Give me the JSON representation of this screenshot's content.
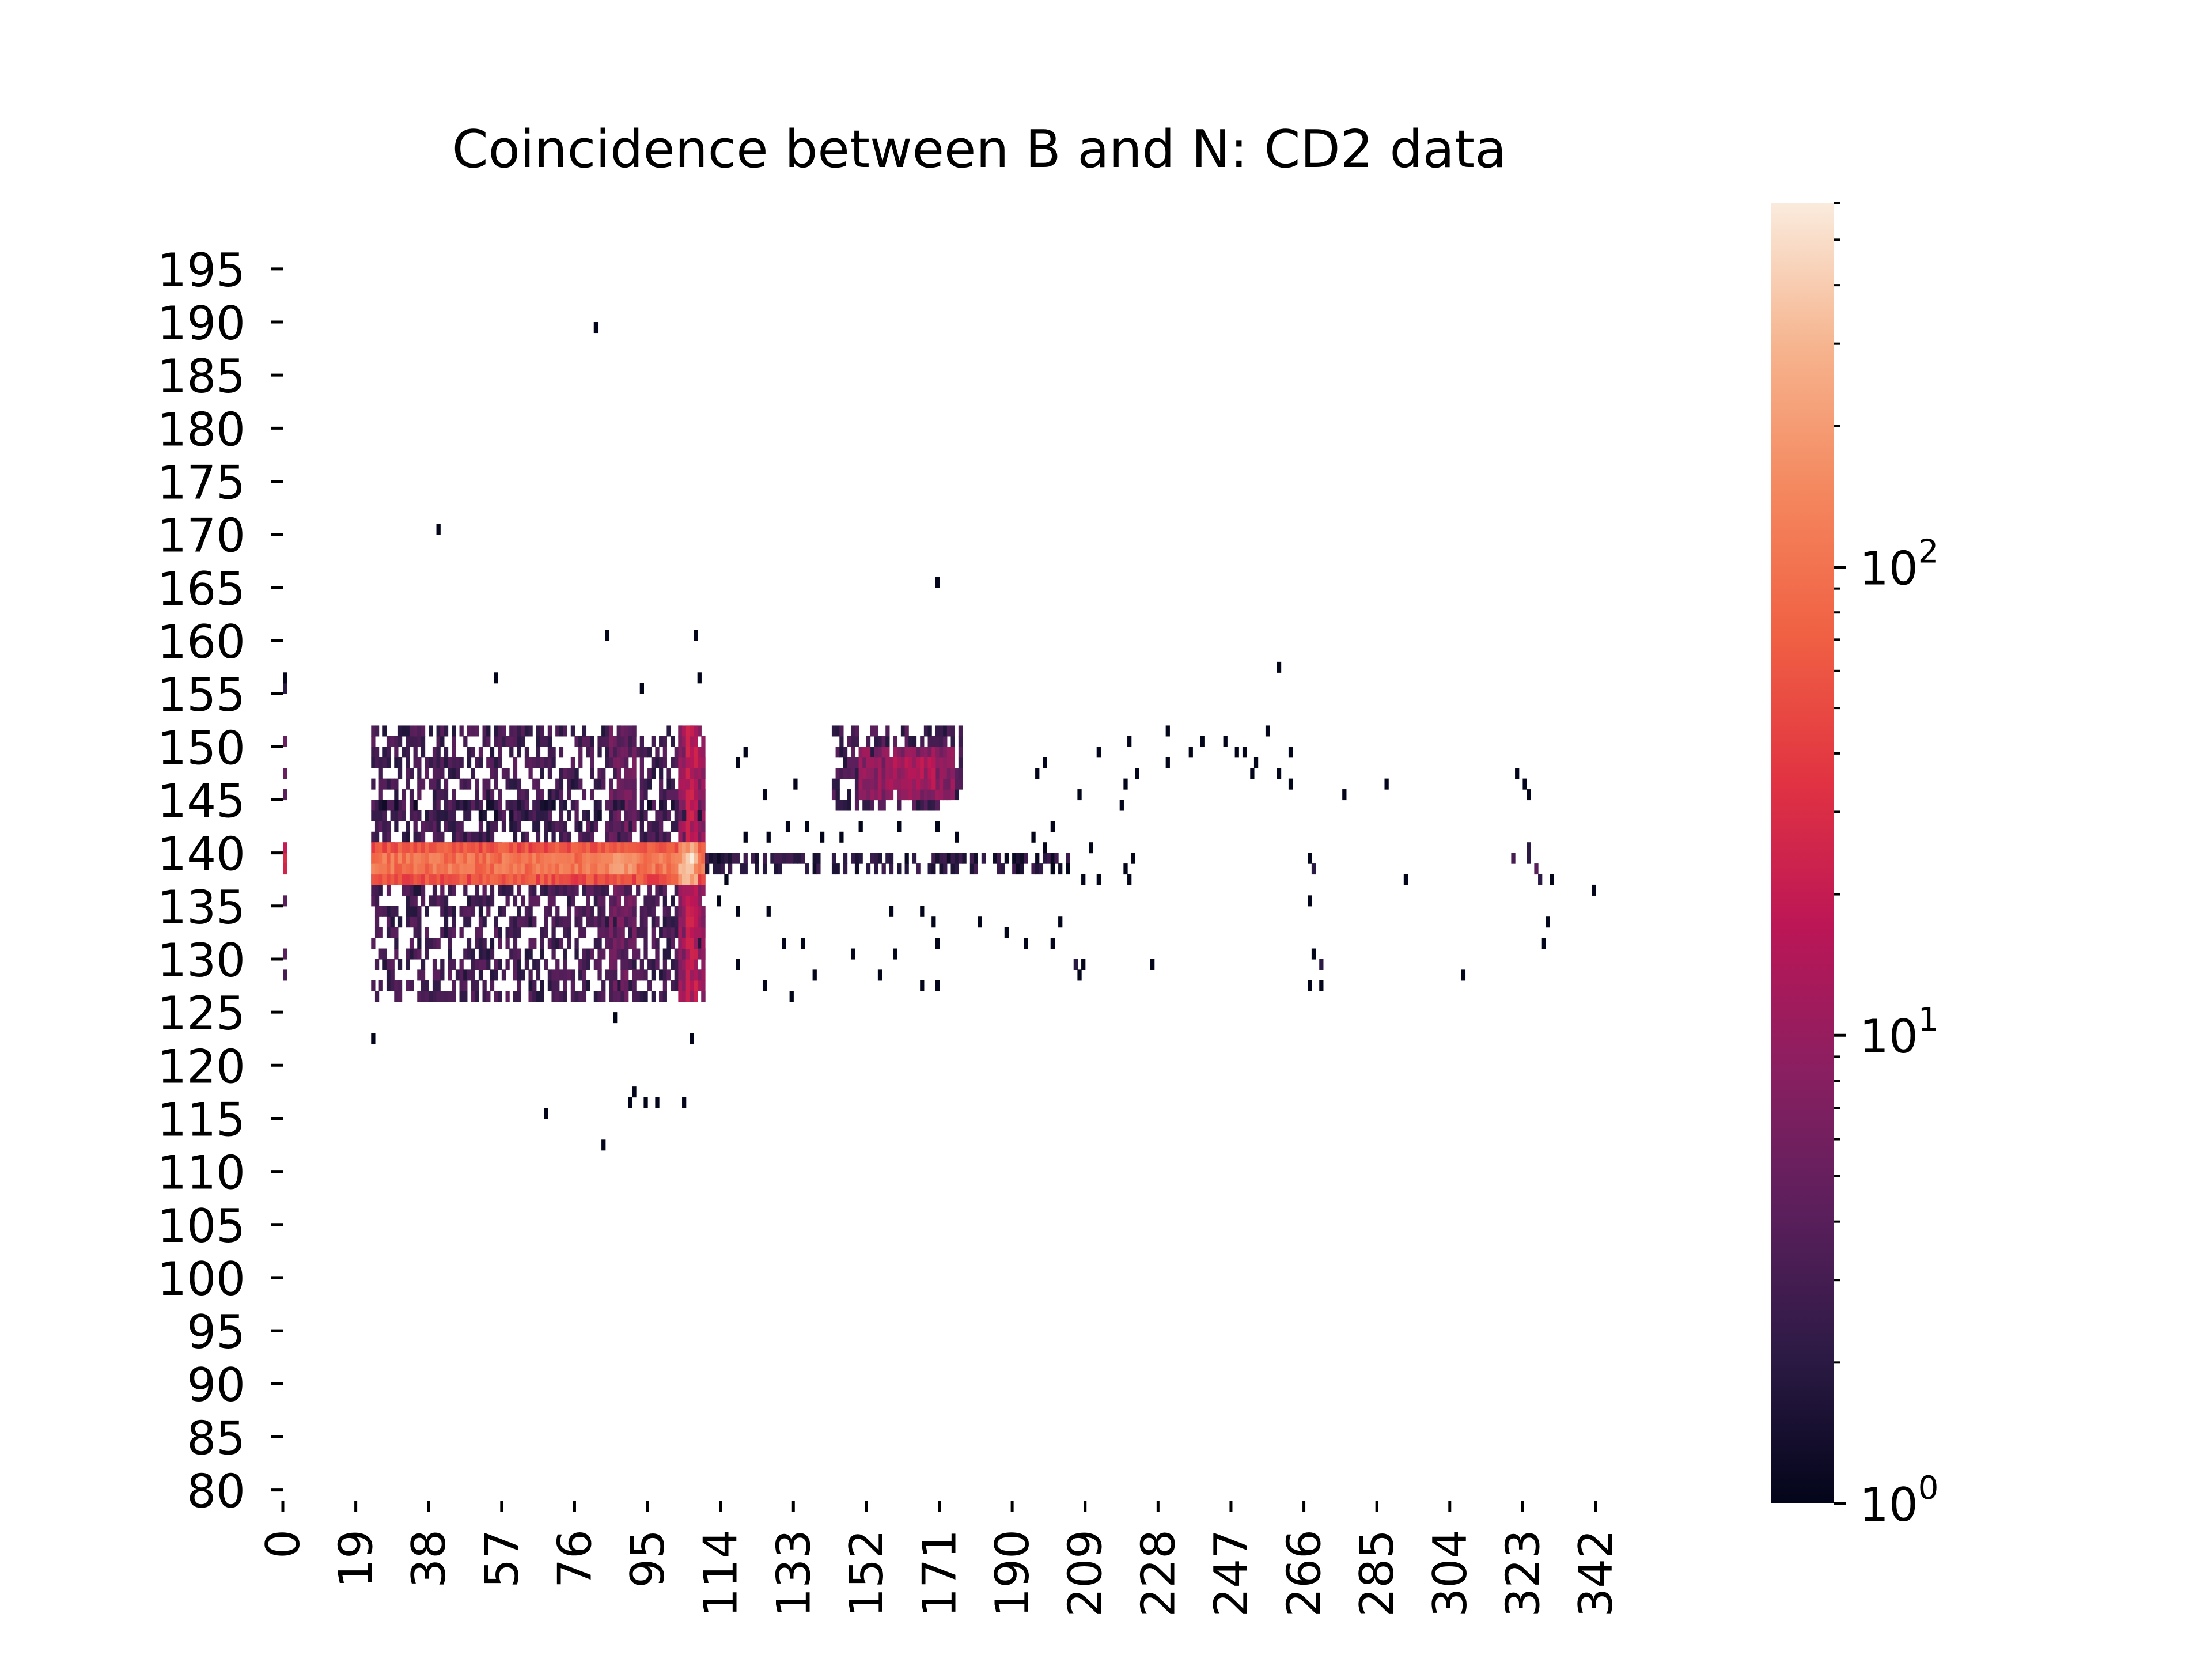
{
  "chart_data": {
    "type": "heatmap",
    "title": "Coincidence between B and N: CD2 data",
    "xlabel": "",
    "ylabel": "",
    "x_ticks": [
      0,
      19,
      38,
      57,
      76,
      95,
      114,
      133,
      152,
      171,
      190,
      209,
      228,
      247,
      266,
      285,
      304,
      323,
      342
    ],
    "y_ticks": [
      195,
      190,
      185,
      180,
      175,
      170,
      165,
      160,
      155,
      150,
      145,
      140,
      135,
      130,
      125,
      120,
      115,
      110,
      105,
      100,
      95,
      90,
      85,
      80
    ],
    "x_range": [
      0,
      345
    ],
    "y_range": [
      79,
      197
    ],
    "color_scale": "log",
    "colorbar": {
      "min": 1,
      "max": 600,
      "major_ticks": [
        {
          "value": 1,
          "base": "10",
          "exp": "0"
        },
        {
          "value": 10,
          "base": "10",
          "exp": "1"
        },
        {
          "value": 100,
          "base": "10",
          "exp": "2"
        }
      ],
      "colors": [
        "#03051a",
        "#2b1a44",
        "#5a1f5c",
        "#8a1f61",
        "#bc1656",
        "#e13342",
        "#f06043",
        "#f4875e",
        "#f6b48e",
        "#faebdd"
      ]
    },
    "points": [
      [
        0,
        139,
        30
      ],
      [
        0,
        138,
        25
      ],
      [
        0,
        140,
        20
      ],
      [
        0,
        150,
        5
      ],
      [
        0,
        147,
        5
      ],
      [
        0,
        145,
        4
      ],
      [
        0,
        135,
        4
      ],
      [
        0,
        130,
        4
      ],
      [
        0,
        128,
        3
      ],
      [
        0,
        155,
        2
      ],
      [
        0,
        156,
        1
      ],
      [
        23,
        122,
        1
      ],
      [
        40,
        170,
        1
      ],
      [
        55,
        156,
        1
      ],
      [
        68,
        115,
        1
      ],
      [
        81,
        189,
        1
      ],
      [
        83,
        112,
        1
      ],
      [
        84,
        160,
        1
      ],
      [
        86,
        124,
        1
      ],
      [
        90,
        116,
        1
      ],
      [
        91,
        117,
        1
      ],
      [
        93,
        155,
        1
      ],
      [
        94,
        116,
        1
      ],
      [
        97,
        116,
        1
      ],
      [
        104,
        116,
        1
      ],
      [
        107,
        160,
        1
      ],
      [
        106,
        122,
        1
      ],
      [
        108,
        156,
        1
      ],
      [
        170,
        165,
        1
      ],
      [
        259,
        157,
        1
      ],
      [
        236,
        149,
        1
      ],
      [
        239,
        150,
        1
      ],
      [
        262,
        146,
        1
      ],
      [
        287,
        146,
        1
      ],
      [
        276,
        145,
        1
      ],
      [
        268,
        138,
        2
      ],
      [
        267,
        139,
        1
      ],
      [
        267,
        135,
        1
      ],
      [
        268,
        130,
        1
      ],
      [
        267,
        127,
        1
      ],
      [
        270,
        127,
        1
      ],
      [
        270,
        129,
        2
      ],
      [
        292,
        137,
        1
      ],
      [
        307,
        128,
        1
      ],
      [
        341,
        136,
        1
      ],
      [
        330,
        137,
        1
      ],
      [
        329,
        133,
        1
      ],
      [
        328,
        131,
        1
      ],
      [
        320,
        139,
        3
      ],
      [
        324,
        139,
        2
      ],
      [
        326,
        138,
        4
      ],
      [
        324,
        140,
        2
      ],
      [
        327,
        137,
        2
      ],
      [
        321,
        147,
        1
      ],
      [
        323,
        146,
        1
      ],
      [
        324,
        145,
        1
      ],
      [
        220,
        137,
        1
      ],
      [
        226,
        129,
        1
      ],
      [
        206,
        129,
        2
      ],
      [
        207,
        128,
        1
      ],
      [
        208,
        129,
        1
      ],
      [
        193,
        131,
        1
      ],
      [
        200,
        131,
        1
      ],
      [
        181,
        133,
        1
      ],
      [
        202,
        133,
        1
      ],
      [
        135,
        131,
        1
      ],
      [
        138,
        128,
        1
      ],
      [
        155,
        128,
        1
      ],
      [
        159,
        130,
        1
      ],
      [
        166,
        127,
        1
      ],
      [
        170,
        127,
        1
      ],
      [
        170,
        131,
        1
      ],
      [
        148,
        130,
        1
      ],
      [
        130,
        131,
        1
      ],
      [
        132,
        126,
        1
      ],
      [
        125,
        127,
        1
      ],
      [
        118,
        129,
        1
      ],
      [
        118,
        134,
        1
      ],
      [
        126,
        134,
        1
      ],
      [
        158,
        134,
        1
      ],
      [
        169,
        133,
        1
      ],
      [
        166,
        134,
        1
      ],
      [
        188,
        132,
        1
      ],
      [
        245,
        150,
        1
      ],
      [
        248,
        149,
        1
      ],
      [
        250,
        149,
        1
      ],
      [
        253,
        148,
        1
      ],
      [
        252,
        147,
        1
      ],
      [
        259,
        147,
        1
      ],
      [
        256,
        151,
        1
      ],
      [
        262,
        149,
        1
      ],
      [
        230,
        148,
        1
      ],
      [
        222,
        147,
        1
      ],
      [
        218,
        144,
        1
      ],
      [
        219,
        146,
        1
      ],
      [
        198,
        148,
        1
      ],
      [
        196,
        147,
        1
      ],
      [
        207,
        145,
        1
      ],
      [
        212,
        149,
        1
      ],
      [
        220,
        150,
        1
      ],
      [
        230,
        151,
        1
      ],
      [
        118,
        148,
        1
      ],
      [
        120,
        149,
        1
      ],
      [
        125,
        145,
        1
      ],
      [
        133,
        146,
        1
      ],
      [
        131,
        142,
        1
      ],
      [
        136,
        142,
        1
      ],
      [
        140,
        141,
        1
      ],
      [
        145,
        141,
        1
      ],
      [
        150,
        142,
        1
      ],
      [
        160,
        142,
        1
      ],
      [
        170,
        142,
        1
      ],
      [
        175,
        141,
        1
      ],
      [
        120,
        141,
        1
      ],
      [
        126,
        141,
        1
      ],
      [
        113,
        135,
        1
      ],
      [
        115,
        137,
        1
      ],
      [
        198,
        140,
        1
      ],
      [
        200,
        138,
        1
      ],
      [
        204,
        138,
        1
      ],
      [
        208,
        137,
        1
      ],
      [
        210,
        140,
        1
      ],
      [
        212,
        137,
        1
      ],
      [
        219,
        138,
        1
      ],
      [
        221,
        139,
        1
      ],
      [
        200,
        142,
        1
      ],
      [
        195,
        141,
        1
      ]
    ],
    "rects": [
      {
        "x": [
          23,
          110
        ],
        "y": [
          126,
          152
        ],
        "value": 3,
        "density": 0.55
      },
      {
        "x": [
          85,
          92
        ],
        "y": [
          126,
          152
        ],
        "value": 5,
        "density": 0.8
      },
      {
        "x": [
          103,
          110
        ],
        "y": [
          126,
          152
        ],
        "value": 10,
        "density": 0.9
      },
      {
        "x": [
          105,
          108
        ],
        "y": [
          126,
          152
        ],
        "value": 18,
        "density": 1.0
      },
      {
        "x": [
          23,
          110
        ],
        "y": [
          137,
          141
        ],
        "value": 60,
        "density": 1.0
      },
      {
        "x": [
          23,
          110
        ],
        "y": [
          138,
          140
        ],
        "value": 110,
        "density": 1.0
      },
      {
        "x": [
          85,
          92
        ],
        "y": [
          138,
          140
        ],
        "value": 160,
        "density": 1.0
      },
      {
        "x": [
          103,
          108
        ],
        "y": [
          137,
          141
        ],
        "value": 230,
        "density": 1.0
      },
      {
        "x": [
          105,
          107
        ],
        "y": [
          138,
          140
        ],
        "value": 420,
        "density": 1.0
      },
      {
        "x": [
          23,
          110
        ],
        "y": [
          143,
          145
        ],
        "value": 2,
        "density": 0.3
      },
      {
        "x": [
          110,
          205
        ],
        "y": [
          138,
          140
        ],
        "value": 2,
        "density": 0.55
      },
      {
        "x": [
          143,
          177
        ],
        "y": [
          144,
          152
        ],
        "value": 3,
        "density": 0.6
      },
      {
        "x": [
          150,
          175
        ],
        "y": [
          145,
          150
        ],
        "value": 9,
        "density": 0.95
      },
      {
        "x": [
          158,
          170
        ],
        "y": [
          146,
          149
        ],
        "value": 14,
        "density": 1.0
      }
    ]
  }
}
